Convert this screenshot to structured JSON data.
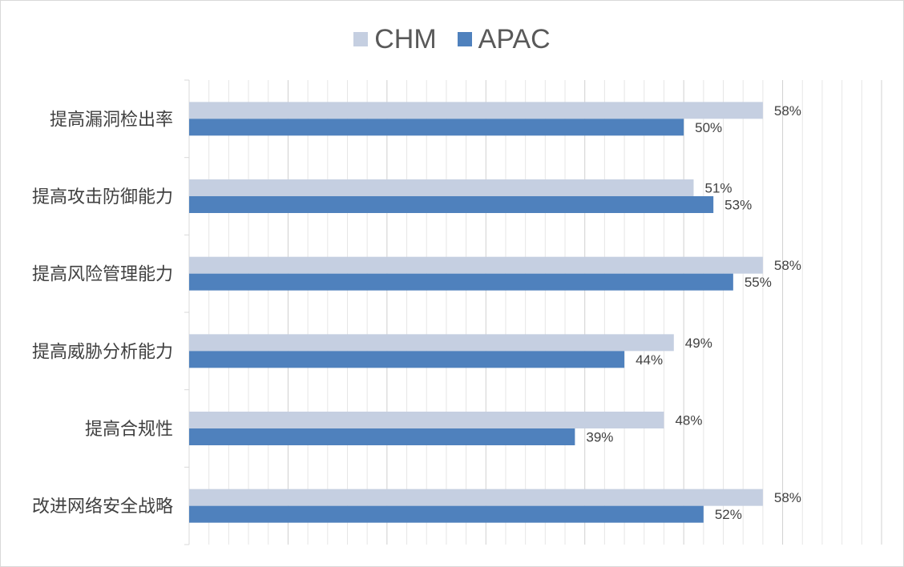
{
  "chart_data": {
    "type": "bar",
    "orientation": "horizontal",
    "categories": [
      "提高漏洞检出率",
      "提高攻击防御能力",
      "提高风险管理能力",
      "提高威胁分析能力",
      "提高合规性",
      "改进网络安全战略"
    ],
    "series": [
      {
        "name": "CHM",
        "color": "#c5cfe1",
        "values": [
          58,
          51,
          58,
          49,
          48,
          58
        ],
        "labels": [
          "58%",
          "51%",
          "58%",
          "49%",
          "48%",
          "58%"
        ]
      },
      {
        "name": "APAC",
        "color": "#4f81bd",
        "values": [
          50,
          53,
          55,
          44,
          39,
          52
        ],
        "labels": [
          "50%",
          "53%",
          "55%",
          "44%",
          "39%",
          "52%"
        ]
      }
    ],
    "xlim": [
      0,
      70
    ],
    "grid": true,
    "legend_position": "top",
    "title": "",
    "xlabel": "",
    "ylabel": ""
  }
}
